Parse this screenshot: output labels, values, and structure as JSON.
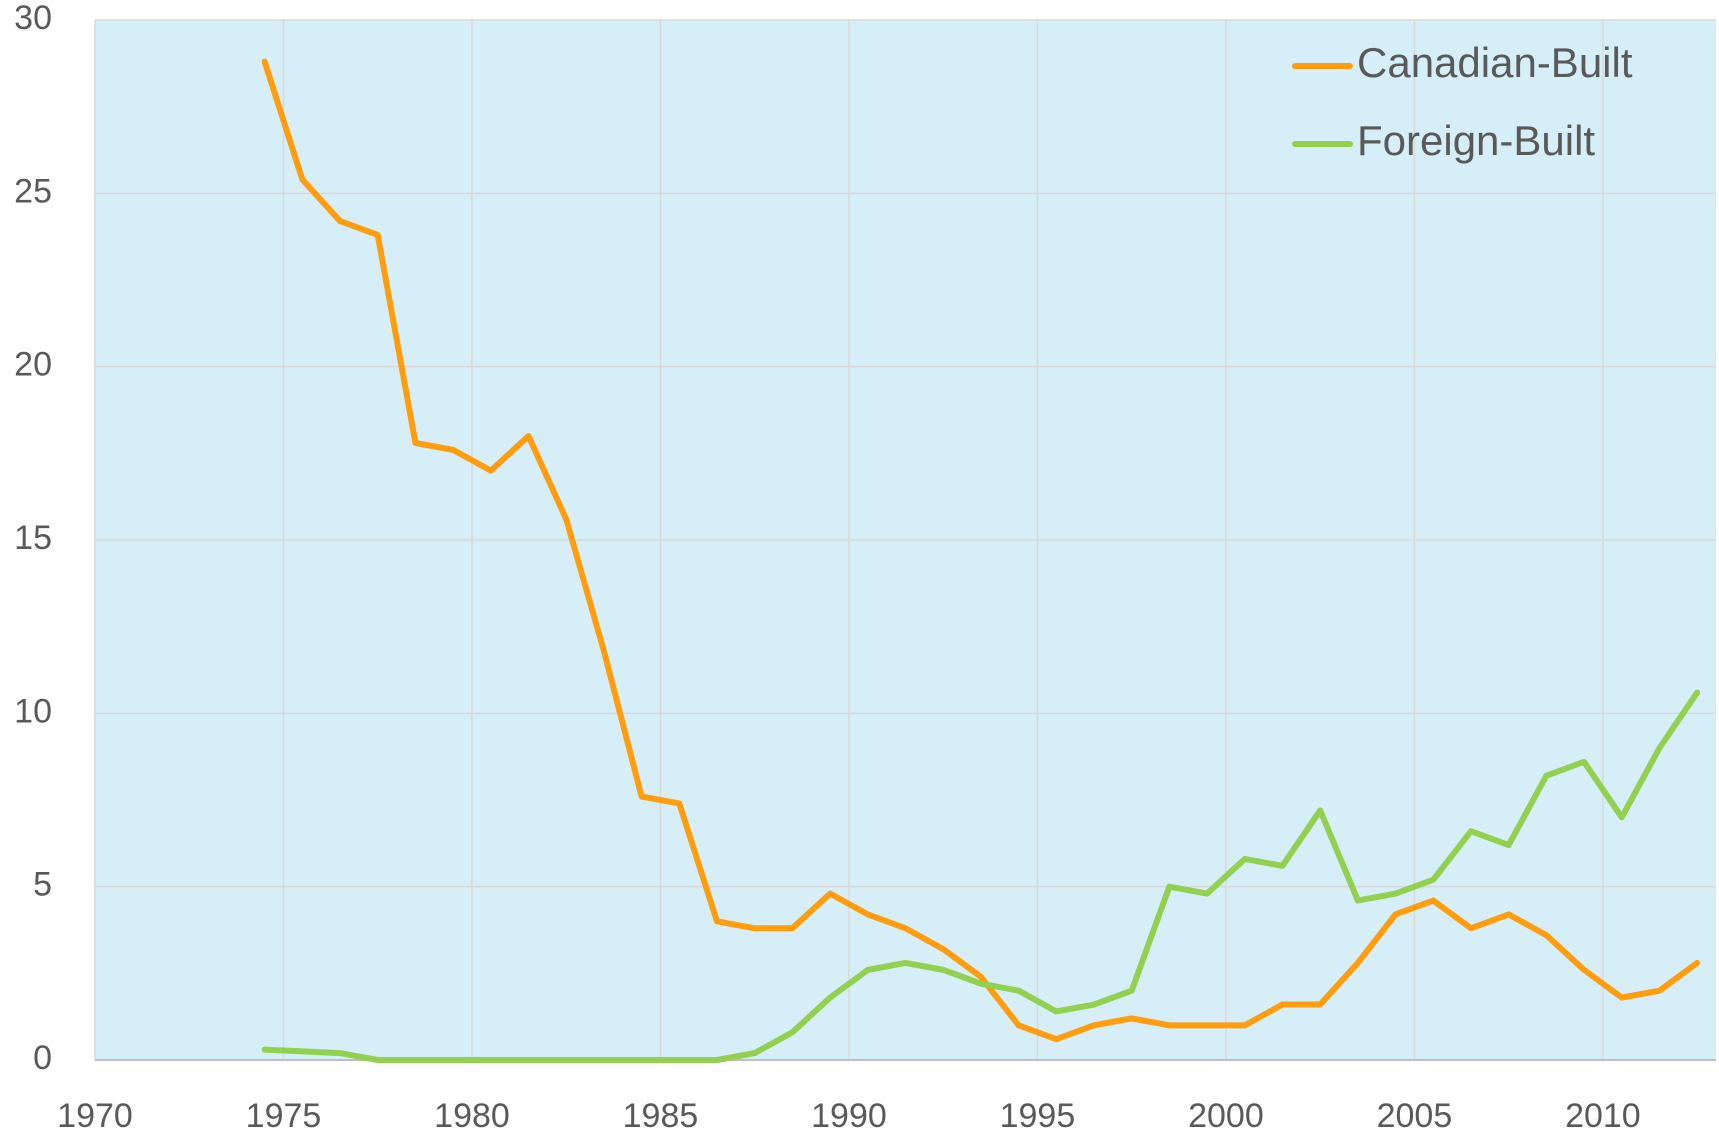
{
  "chart_data": {
    "type": "line",
    "x": [
      1974.5,
      1975.5,
      1976.5,
      1977.5,
      1978.5,
      1979.5,
      1980.5,
      1981.5,
      1982.5,
      1983.5,
      1984.5,
      1985.5,
      1986.5,
      1987.5,
      1988.5,
      1989.5,
      1990.5,
      1991.5,
      1992.5,
      1993.5,
      1994.5,
      1995.5,
      1996.5,
      1997.5,
      1998.5,
      1999.5,
      2000.5,
      2001.5,
      2002.5,
      2003.5,
      2004.5,
      2005.5,
      2006.5,
      2007.5,
      2008.5,
      2009.5,
      2010.5,
      2011.5,
      2012.5
    ],
    "series": [
      {
        "name": "Canadian-Built",
        "color": "#ff9d0f",
        "values": [
          28.8,
          25.4,
          24.2,
          23.8,
          17.8,
          17.6,
          17.0,
          18.0,
          15.6,
          11.8,
          7.6,
          7.4,
          4.0,
          3.8,
          3.8,
          4.8,
          4.2,
          3.8,
          3.2,
          2.4,
          1.0,
          0.6,
          1.0,
          1.2,
          1.0,
          1.0,
          1.0,
          1.6,
          1.6,
          2.8,
          4.2,
          4.6,
          3.8,
          4.2,
          3.6,
          2.6,
          1.8,
          2.0,
          2.8
        ]
      },
      {
        "name": "Foreign-Built",
        "color": "#92d050",
        "values": [
          0.3,
          0.25,
          0.2,
          0,
          0,
          0,
          0,
          0,
          0,
          0,
          0,
          0,
          0,
          0.2,
          0.8,
          1.8,
          2.6,
          2.8,
          2.6,
          2.2,
          2.0,
          1.4,
          1.6,
          2.0,
          5.0,
          4.8,
          5.8,
          5.6,
          7.2,
          4.6,
          4.8,
          5.2,
          6.6,
          6.2,
          8.2,
          8.6,
          7.0,
          9.0,
          10.6
        ]
      }
    ],
    "xlim": [
      1970,
      2013
    ],
    "xticks": [
      1970,
      1975,
      1980,
      1985,
      1990,
      1995,
      2000,
      2005,
      2010
    ],
    "ylim": [
      0,
      30
    ],
    "yticks": [
      0,
      5,
      10,
      15,
      20,
      25,
      30
    ],
    "grid": true,
    "legend": "upper right",
    "background": "#d5eef8"
  }
}
